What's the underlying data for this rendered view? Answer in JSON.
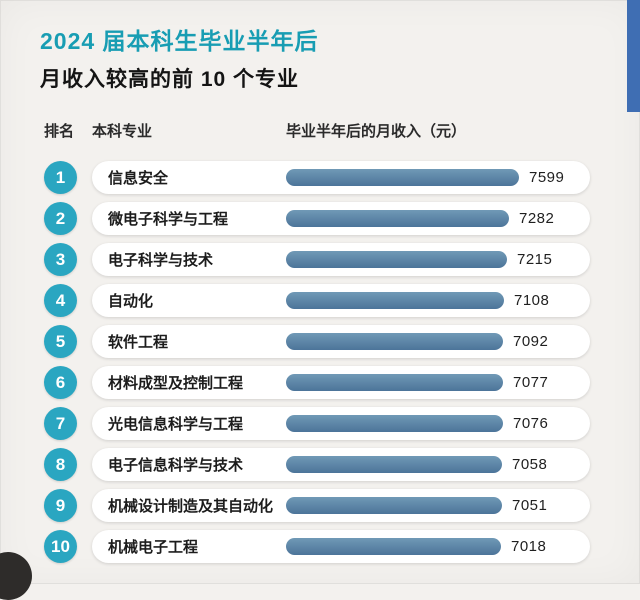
{
  "page": {
    "title_line1": "2024 届本科生毕业半年后",
    "title_line2": "月收入较高的前 10 个专业"
  },
  "table_headers": {
    "rank": "排名",
    "major": "本科专业",
    "income": "毕业半年后的月收入（元）"
  },
  "chart_data": {
    "type": "bar",
    "orientation": "horizontal",
    "title": "2024届本科生毕业半年后月收入较高的前10个专业",
    "unit": "元",
    "ranks": [
      1,
      2,
      3,
      4,
      5,
      6,
      7,
      8,
      9,
      10
    ],
    "categories": [
      "信息安全",
      "微电子科学与工程",
      "电子科学与技术",
      "自动化",
      "软件工程",
      "材料成型及控制工程",
      "光电信息科学与工程",
      "电子信息科学与技术",
      "机械设计制造及其自动化",
      "机械电子工程"
    ],
    "values": [
      7599,
      7282,
      7215,
      7108,
      7092,
      7077,
      7076,
      7058,
      7051,
      7018
    ],
    "xlim": [
      0,
      7599
    ],
    "legend": "none",
    "grid": "off"
  },
  "colors": {
    "background": "#f3f1ee",
    "title_accent": "#189db3",
    "badge": "#2aa6c1",
    "bar_start": "#7099b6",
    "bar_end": "#4c7499",
    "strip_blue": "#3f6eb3"
  }
}
